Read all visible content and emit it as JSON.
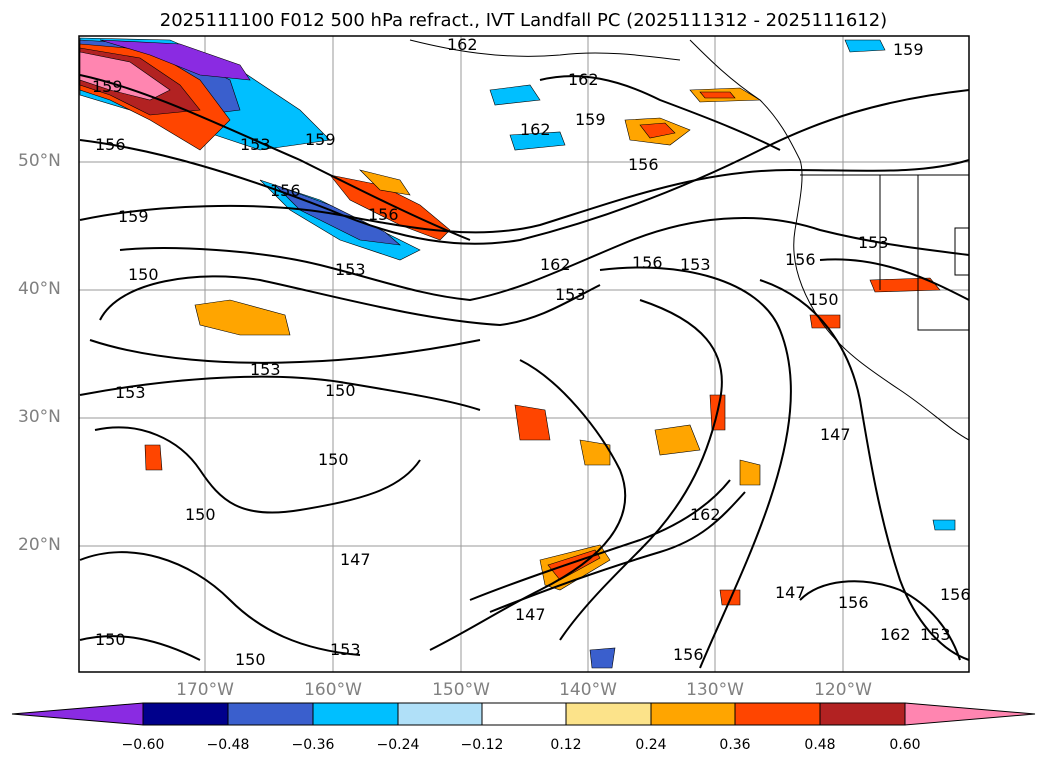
{
  "title": "2025111100 F012 500 hPa refract., IVT Landfall PC (2025111312 - 2025111612)",
  "lat_labels": [
    "50°N",
    "40°N",
    "30°N",
    "20°N"
  ],
  "lon_labels": [
    "170°W",
    "160°W",
    "150°W",
    "140°W",
    "130°W",
    "120°W"
  ],
  "colorbar": {
    "ticks": [
      "−0.60",
      "−0.48",
      "−0.36",
      "−0.24",
      "−0.12",
      "0.12",
      "0.24",
      "0.36",
      "0.48",
      "0.60"
    ],
    "colors": [
      "#8a2be2",
      "#00008b",
      "#3a5fcd",
      "#00bfff",
      "#b0e0f8",
      "#ffffff",
      "#fce38a",
      "#ffa500",
      "#ff4500",
      "#b22222",
      "#ff85b0",
      "#ff85b0"
    ]
  },
  "contour_labels": [
    "159",
    "156",
    "153",
    "150",
    "147",
    "162"
  ]
}
